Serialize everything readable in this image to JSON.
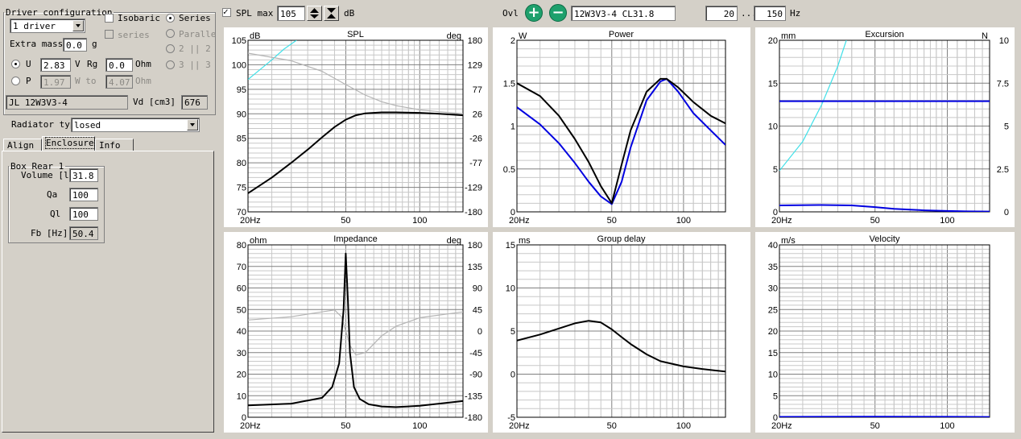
{
  "driver_config": {
    "legend": "Driver configuration",
    "driver_count": "1 driver",
    "isobaric": "Isobaric",
    "isobaric_checked": false,
    "series_check": "series",
    "series_radio": "Series",
    "parallel_radio": "Paralle",
    "opt_2_2": "2 || 2",
    "opt_3_3": "3 || 3",
    "extra_mass_label": "Extra mass",
    "extra_mass_value": "0.0",
    "extra_mass_unit": "g",
    "u_label": "U",
    "u_value": "2.83",
    "v_unit": "V",
    "rg_label": "Rg",
    "rg_value": "0.0",
    "ohm_unit": "Ohm",
    "p_label": "P",
    "p_value": "1.97",
    "w_to": "W to",
    "p_ohm_value": "4.07",
    "p_ohm_unit": "Ohm",
    "driver_name": "JL 12W3V3-4",
    "vd_label": "Vd [cm3]",
    "vd_value": "676"
  },
  "radiator": {
    "label": "Radiator type",
    "value": "losed"
  },
  "tabs": [
    {
      "label": "Align",
      "selected": false
    },
    {
      "label": "Enclosure",
      "selected": true
    },
    {
      "label": "Info",
      "selected": false
    }
  ],
  "box": {
    "legend": "Box Rear 1",
    "volume_label": "Volume [l]",
    "volume_value": "31.8",
    "qa_label": "Qa",
    "qa_value": "100",
    "ql_label": "Ql",
    "ql_value": "100",
    "fb_label": "Fb [Hz]",
    "fb_value": "50.4"
  },
  "toolbar": {
    "spl_max_label": "SPL max",
    "spl_max_checked": true,
    "spl_max_value": "105",
    "db_unit": "dB",
    "ovl_label": "Ovl",
    "design_name": "12W3V3-4 CL31.8",
    "freq_from": "20",
    "freq_sep": "...",
    "freq_to": "150",
    "hz_unit": "Hz"
  },
  "colors": {
    "primary": "#000000",
    "blue": "#0000e0",
    "cyan": "#40e0e8",
    "phase": "#b4b4b4",
    "grid": "#c8c8c8",
    "grid_major": "#808080"
  },
  "chart_data": [
    {
      "id": "spl",
      "type": "line",
      "title": "SPL",
      "unit_left": "dB",
      "unit_right": "deg",
      "xlim": [
        20,
        150
      ],
      "x_scale": "log",
      "x_ticks": [
        "20Hz",
        "50",
        "100"
      ],
      "ylim": [
        70,
        105
      ],
      "y_ticks": [
        "105",
        "100",
        "95",
        "90",
        "85",
        "80",
        "75",
        "70"
      ],
      "y2lim": [
        -180,
        180
      ],
      "y2_ticks": [
        "180",
        "129",
        "77",
        "26",
        "-26",
        "-77",
        "-129",
        "-180"
      ],
      "series": [
        {
          "color": "#000000",
          "axis": "left",
          "x": [
            20,
            25,
            30,
            35,
            40,
            45,
            50,
            55,
            60,
            70,
            80,
            100,
            120,
            150
          ],
          "y": [
            73.8,
            77.0,
            80.0,
            82.7,
            85.2,
            87.3,
            88.8,
            89.7,
            90.1,
            90.3,
            90.3,
            90.2,
            90.0,
            89.7
          ]
        },
        {
          "color": "#40e0e8",
          "axis": "left",
          "x": [
            20,
            22,
            25,
            28,
            31.5
          ],
          "y": [
            97.0,
            98.7,
            101.0,
            103.2,
            105.0
          ]
        },
        {
          "color": "#b4b4b4",
          "axis": "right",
          "x": [
            20,
            30,
            40,
            50,
            60,
            70,
            80,
            100,
            120,
            150
          ],
          "y": [
            153,
            137,
            115,
            87,
            65,
            51,
            43,
            34,
            30,
            26
          ]
        }
      ]
    },
    {
      "id": "power",
      "type": "line",
      "title": "Power",
      "unit_left": "W",
      "unit_right": "",
      "xlim": [
        20,
        150
      ],
      "x_scale": "log",
      "x_ticks": [
        "20Hz",
        "50",
        "100"
      ],
      "ylim": [
        0,
        2
      ],
      "y_ticks": [
        "2",
        "1.5",
        "1",
        "0.5",
        "0"
      ],
      "series": [
        {
          "color": "#0000e0",
          "axis": "left",
          "x": [
            20,
            25,
            30,
            35,
            40,
            45,
            50,
            55,
            60,
            70,
            80,
            85,
            95,
            110,
            130,
            150
          ],
          "y": [
            1.22,
            1.02,
            0.8,
            0.57,
            0.35,
            0.18,
            0.09,
            0.35,
            0.75,
            1.3,
            1.52,
            1.55,
            1.4,
            1.15,
            0.95,
            0.78
          ]
        },
        {
          "color": "#000000",
          "axis": "left",
          "x": [
            20,
            25,
            30,
            35,
            40,
            45,
            50,
            55,
            60,
            70,
            80,
            85,
            95,
            110,
            130,
            150
          ],
          "y": [
            1.5,
            1.35,
            1.12,
            0.85,
            0.58,
            0.3,
            0.1,
            0.55,
            0.95,
            1.4,
            1.55,
            1.55,
            1.45,
            1.28,
            1.12,
            1.03
          ]
        }
      ]
    },
    {
      "id": "excursion",
      "type": "line",
      "title": "Excursion",
      "unit_left": "mm",
      "unit_right": "N",
      "xlim": [
        20,
        150
      ],
      "x_scale": "log",
      "x_ticks": [
        "20Hz",
        "50",
        "100"
      ],
      "ylim": [
        0,
        20
      ],
      "y_ticks": [
        "20",
        "15",
        "10",
        "5",
        "0"
      ],
      "y2lim": [
        0,
        10
      ],
      "y2_ticks": [
        "10",
        "7.5",
        "5",
        "2.5",
        "0"
      ],
      "series": [
        {
          "color": "#40e0e8",
          "axis": "left",
          "x": [
            20,
            25,
            30,
            35,
            38
          ],
          "y": [
            4.8,
            8.2,
            12.5,
            17.0,
            20.0
          ]
        },
        {
          "color": "#0000e0",
          "axis": "left",
          "x": [
            20,
            40,
            50,
            60,
            80,
            100,
            150
          ],
          "y": [
            12.9,
            12.9,
            12.9,
            12.9,
            12.9,
            12.9,
            12.9
          ]
        },
        {
          "color": "#0000e0",
          "axis": "left",
          "x": [
            20,
            30,
            40,
            50,
            60,
            70,
            80,
            100,
            120,
            150
          ],
          "y": [
            0.75,
            0.8,
            0.75,
            0.55,
            0.35,
            0.25,
            0.18,
            0.1,
            0.06,
            0.04
          ]
        }
      ]
    },
    {
      "id": "impedance",
      "type": "line",
      "title": "Impedance",
      "unit_left": "ohm",
      "unit_right": "deg",
      "xlim": [
        20,
        150
      ],
      "x_scale": "log",
      "x_ticks": [
        "20Hz",
        "50",
        "100"
      ],
      "ylim": [
        0,
        80
      ],
      "y_ticks": [
        "80",
        "70",
        "60",
        "50",
        "40",
        "30",
        "20",
        "10",
        "0"
      ],
      "y2lim": [
        -180,
        180
      ],
      "y2_ticks": [
        "180",
        "135",
        "90",
        "45",
        "0",
        "-45",
        "-90",
        "-135",
        "-180"
      ],
      "series": [
        {
          "color": "#b4b4b4",
          "axis": "right",
          "x": [
            20,
            30,
            40,
            45,
            48,
            50,
            52,
            55,
            60,
            70,
            80,
            100,
            150
          ],
          "y": [
            23,
            30,
            40,
            44,
            30,
            0,
            -30,
            -50,
            -45,
            -10,
            10,
            28,
            40
          ]
        },
        {
          "color": "#000000",
          "axis": "left",
          "x": [
            20,
            30,
            40,
            44,
            47,
            49,
            50,
            51,
            52,
            54,
            57,
            62,
            70,
            80,
            100,
            150
          ],
          "y": [
            5.5,
            6.3,
            9.0,
            14.0,
            25.0,
            50.0,
            76.0,
            55.0,
            30.0,
            14.0,
            8.5,
            6.0,
            5.0,
            4.7,
            5.3,
            7.5
          ]
        }
      ]
    },
    {
      "id": "group_delay",
      "type": "line",
      "title": "Group delay",
      "unit_left": "ms",
      "unit_right": "",
      "xlim": [
        20,
        150
      ],
      "x_scale": "log",
      "x_ticks": [
        "20Hz",
        "50",
        "100"
      ],
      "ylim": [
        -5,
        15
      ],
      "y_ticks": [
        "15",
        "10",
        "5",
        "0",
        "-5"
      ],
      "series": [
        {
          "color": "#000000",
          "axis": "left",
          "x": [
            20,
            25,
            30,
            35,
            40,
            45,
            50,
            55,
            60,
            70,
            80,
            100,
            120,
            150
          ],
          "y": [
            3.9,
            4.6,
            5.3,
            5.9,
            6.2,
            6.0,
            5.2,
            4.3,
            3.5,
            2.3,
            1.5,
            0.9,
            0.6,
            0.3
          ]
        }
      ]
    },
    {
      "id": "velocity",
      "type": "line",
      "title": "Velocity",
      "unit_left": "m/s",
      "unit_right": "",
      "xlim": [
        20,
        150
      ],
      "x_scale": "log",
      "x_ticks": [
        "20Hz",
        "50",
        "100"
      ],
      "ylim": [
        0,
        40
      ],
      "y_ticks": [
        "40",
        "35",
        "30",
        "25",
        "20",
        "15",
        "10",
        "5",
        "0"
      ],
      "series": [
        {
          "color": "#0000e0",
          "axis": "left",
          "x": [
            20,
            50,
            100,
            150
          ],
          "y": [
            0.1,
            0.15,
            0.12,
            0.08
          ]
        }
      ]
    }
  ]
}
